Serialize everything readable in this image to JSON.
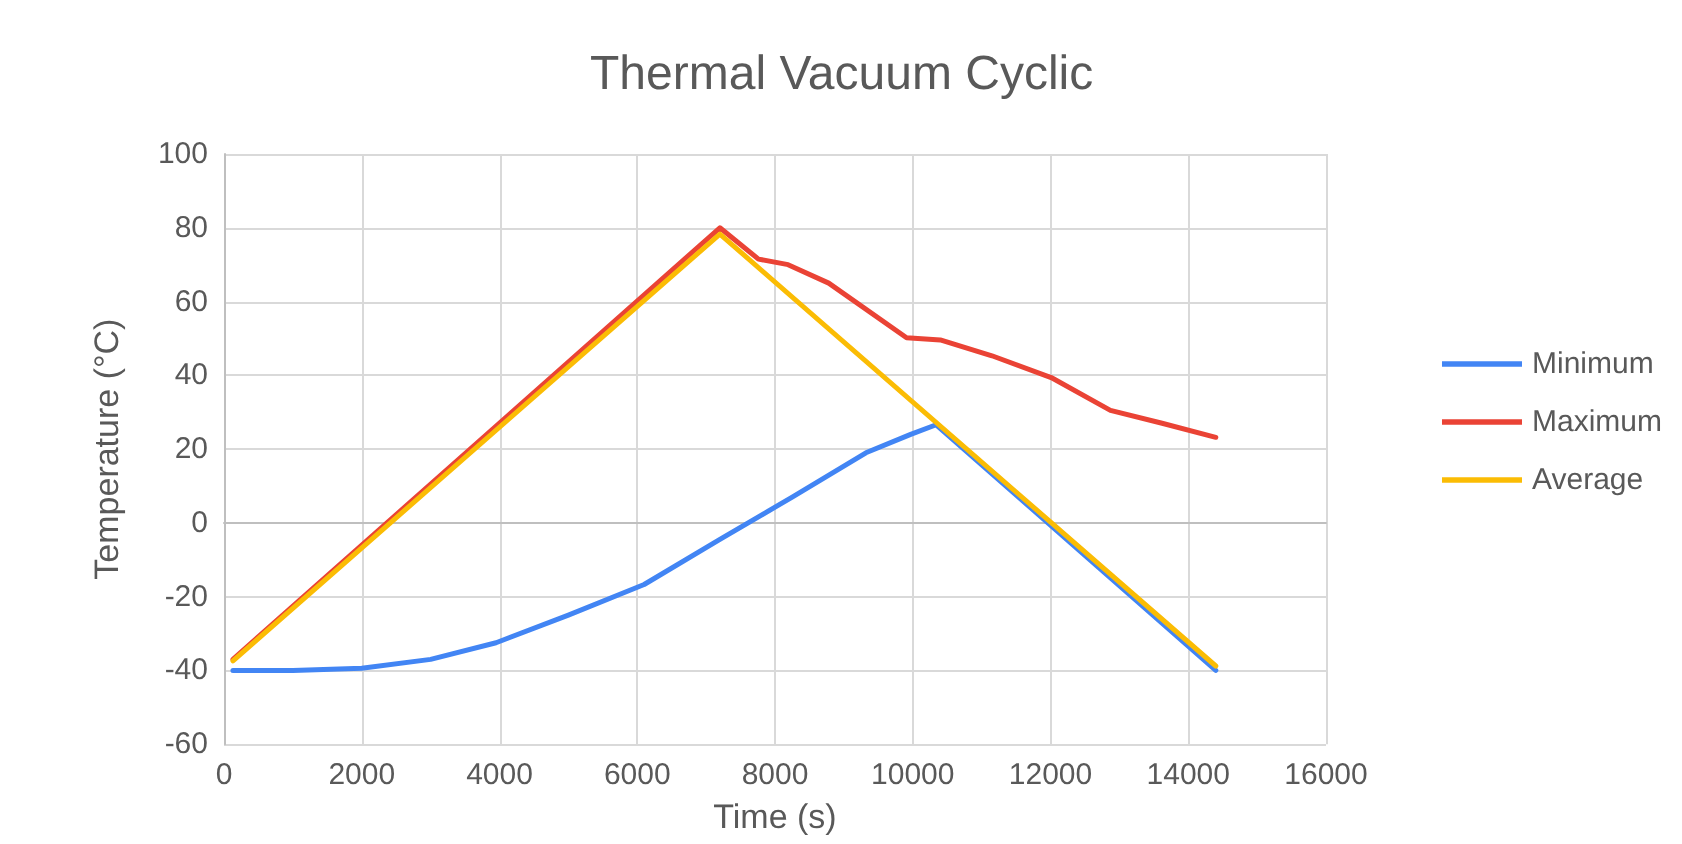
{
  "chart_data": {
    "type": "line",
    "title": "Thermal Vacuum Cyclic",
    "xlabel": "Time (s)",
    "ylabel": "Temperature (°C)",
    "xlim": [
      0,
      16000
    ],
    "xticks": [
      0,
      2000,
      4000,
      6000,
      8000,
      10000,
      12000,
      14000,
      16000
    ],
    "ylim": [
      -60,
      100
    ],
    "yticks": [
      -60,
      -40,
      -20,
      0,
      20,
      40,
      60,
      80,
      100
    ],
    "grid": true,
    "legend": "right",
    "marker": "none",
    "line_style": "solid",
    "series": [
      {
        "name": "Minimum",
        "color": "#4285f4",
        "x": [
          130,
          1000,
          2000,
          3000,
          3950,
          5000,
          6100,
          7200,
          8250,
          9320,
          9970,
          10340,
          14400
        ],
        "values": [
          -40,
          -40,
          -39.4,
          -37,
          -32.5,
          -25,
          -16.7,
          -4.5,
          7,
          19,
          24,
          26.6,
          -40
        ]
      },
      {
        "name": "Maximum",
        "color": "#ea4335",
        "x": [
          130,
          7200,
          7760,
          8190,
          8780,
          9910,
          10400,
          11150,
          12010,
          12870,
          13620,
          14400
        ],
        "values": [
          -37,
          80,
          71.5,
          70,
          65,
          50.2,
          49.6,
          45.3,
          39.4,
          30.5,
          27,
          23.2
        ]
      },
      {
        "name": "Average",
        "color": "#fbbc04",
        "x": [
          130,
          7200,
          14400
        ],
        "values": [
          -37.4,
          78.3,
          -38.8
        ]
      }
    ]
  }
}
